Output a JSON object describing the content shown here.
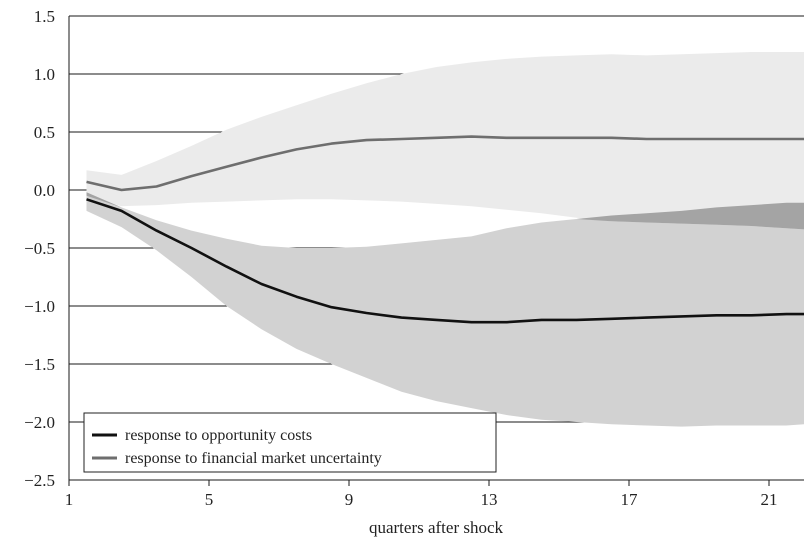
{
  "chart_data": {
    "type": "line",
    "title": "",
    "xlabel": "quarters after shock",
    "ylabel": "",
    "xlim": [
      1,
      22
    ],
    "ylim": [
      -2.5,
      1.5
    ],
    "x_ticks": [
      1,
      5,
      9,
      13,
      17,
      21
    ],
    "x_tick_labels": [
      "1",
      "5",
      "9",
      "13",
      "17",
      "21"
    ],
    "y_ticks": [
      1.5,
      1.0,
      0.5,
      0.0,
      -0.5,
      -1.0,
      -1.5,
      -2.0,
      -2.5
    ],
    "y_tick_labels": [
      "1.5",
      "1.0",
      "0.5",
      "0.0",
      "−0.5",
      "−1.0",
      "−1.5",
      "−2.0",
      "−2.5"
    ],
    "grid": "horizontal",
    "legend_position": "bottom-left",
    "x": [
      1.5,
      2.5,
      3.5,
      4.5,
      5.5,
      6.5,
      7.5,
      8.5,
      9.5,
      10.5,
      11.5,
      12.5,
      13.5,
      14.5,
      15.5,
      16.5,
      17.5,
      18.5,
      19.5,
      20.5,
      21.5,
      22
    ],
    "series": [
      {
        "name": "response to opportunity costs",
        "color": "#111111",
        "values": [
          -0.08,
          -0.18,
          -0.35,
          -0.5,
          -0.66,
          -0.81,
          -0.92,
          -1.01,
          -1.06,
          -1.1,
          -1.12,
          -1.14,
          -1.14,
          -1.12,
          -1.12,
          -1.11,
          -1.1,
          -1.09,
          -1.08,
          -1.08,
          -1.07,
          -1.07
        ],
        "band": {
          "color": "#d2d2d2",
          "upper": [
            -0.02,
            -0.15,
            -0.26,
            -0.35,
            -0.42,
            -0.48,
            -0.5,
            -0.5,
            -0.49,
            -0.46,
            -0.43,
            -0.4,
            -0.33,
            -0.28,
            -0.25,
            -0.22,
            -0.2,
            -0.18,
            -0.15,
            -0.13,
            -0.11,
            -0.11
          ],
          "lower": [
            -0.18,
            -0.32,
            -0.52,
            -0.75,
            -1.0,
            -1.2,
            -1.37,
            -1.5,
            -1.62,
            -1.74,
            -1.82,
            -1.88,
            -1.94,
            -1.98,
            -2.0,
            -2.02,
            -2.03,
            -2.04,
            -2.03,
            -2.03,
            -2.03,
            -2.02
          ]
        }
      },
      {
        "name": "response to financial market uncertainty",
        "color": "#6e6e6e",
        "values": [
          0.07,
          0.0,
          0.03,
          0.12,
          0.2,
          0.28,
          0.35,
          0.4,
          0.43,
          0.44,
          0.45,
          0.46,
          0.45,
          0.45,
          0.45,
          0.45,
          0.44,
          0.44,
          0.44,
          0.44,
          0.44,
          0.44
        ],
        "band": {
          "color": "#ebebeb",
          "upper": [
            0.17,
            0.13,
            0.25,
            0.38,
            0.52,
            0.63,
            0.73,
            0.83,
            0.92,
            1.0,
            1.06,
            1.1,
            1.13,
            1.15,
            1.16,
            1.17,
            1.16,
            1.17,
            1.18,
            1.19,
            1.19,
            1.19
          ],
          "lower": [
            -0.05,
            -0.14,
            -0.13,
            -0.11,
            -0.1,
            -0.09,
            -0.08,
            -0.08,
            -0.09,
            -0.1,
            -0.12,
            -0.14,
            -0.17,
            -0.2,
            -0.24,
            -0.27,
            -0.28,
            -0.29,
            -0.3,
            -0.31,
            -0.33,
            -0.34
          ]
        }
      }
    ],
    "overlap_color": "#a4a4a4"
  }
}
